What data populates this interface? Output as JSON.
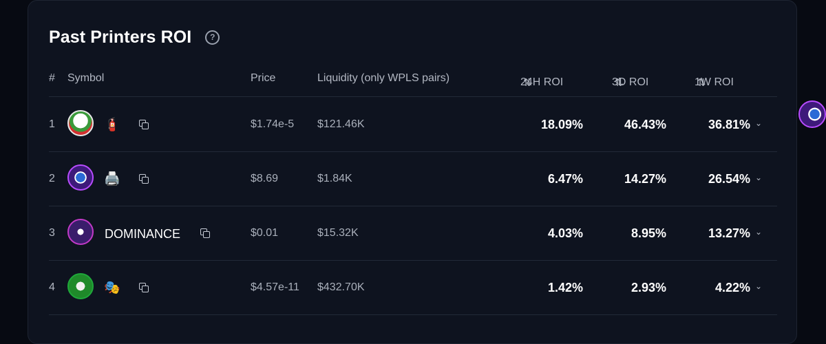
{
  "panel": {
    "title": "Past Printers ROI",
    "help_icon": "?"
  },
  "table": {
    "headers": {
      "rank": "#",
      "symbol": "Symbol",
      "price": "Price",
      "liquidity": "Liquidity (only WPLS pairs)",
      "roi_24h": "24H ROI",
      "roi_3d": "3D ROI",
      "roi_1w": "1W ROI",
      "sort_icon": "⇅"
    },
    "rows": [
      {
        "rank": "1",
        "avatar": "money-logo",
        "token_icon": "🧯",
        "symbol": "",
        "price": "$1.74e-5",
        "liquidity": "$121.46K",
        "roi_24h": "18.09%",
        "roi_3d": "46.43%",
        "roi_1w": "36.81%"
      },
      {
        "rank": "2",
        "avatar": "printer-logo",
        "token_icon": "🖨️",
        "symbol": "",
        "price": "$8.69",
        "liquidity": "$1.84K",
        "roi_24h": "6.47%",
        "roi_3d": "14.27%",
        "roi_1w": "26.54%"
      },
      {
        "rank": "3",
        "avatar": "dominance-logo",
        "token_icon": "",
        "symbol": "DOMINANCE",
        "price": "$0.01",
        "liquidity": "$15.32K",
        "roi_24h": "4.03%",
        "roi_3d": "8.95%",
        "roi_1w": "13.27%"
      },
      {
        "rank": "4",
        "avatar": "mask-logo",
        "token_icon": "🎭",
        "symbol": "",
        "price": "$4.57e-11",
        "liquidity": "$432.70K",
        "roi_24h": "1.42%",
        "roi_3d": "2.93%",
        "roi_1w": "4.22%"
      }
    ],
    "chevron": "⌄"
  },
  "colors": {
    "background": "#070a12",
    "panel": "#0e131f",
    "divider": "#222a38",
    "text_primary": "#ffffff",
    "text_muted": "#aab0bb"
  }
}
